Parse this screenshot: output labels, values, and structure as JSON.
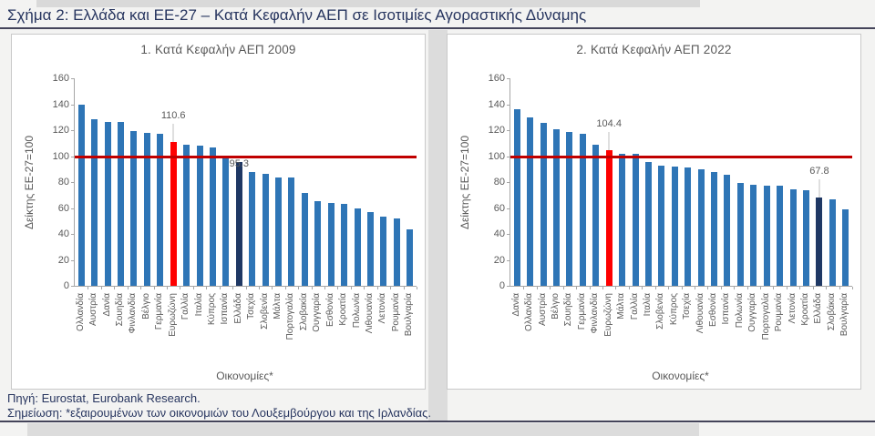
{
  "page": {
    "title": "Σχήμα 2: Ελλάδα και ΕΕ-27 – Κατά Κεφαλήν ΑΕΠ σε Ισοτιμίες Αγοραστικής Δύναμης",
    "footer": {
      "source": "Πηγή: Eurostat, Eurobank Research.",
      "note": "Σημείωση: *εξαιρουμένων των οικονομιών του Λουξεμβούργου και της Ιρλανδίας."
    }
  },
  "colors": {
    "bar_blue": "#2e75b6",
    "bar_red": "#fe0000",
    "bar_navy": "#1f3864",
    "reference_line_red": "#c00000",
    "title_navy": "#27355f",
    "axis_gray": "#595959"
  },
  "chart_data": [
    {
      "type": "bar",
      "title": "1. Κατά Κεφαλήν ΑΕΠ 2009",
      "xlabel": "Οικονομίες*",
      "ylabel": "Δείκτης ΕΕ-27=100",
      "ylim": [
        0,
        160
      ],
      "ytick_step": 20,
      "grid": false,
      "reference_line_y": 100,
      "categories": [
        "Ολλανδία",
        "Αυστρία",
        "Δανία",
        "Σουηδία",
        "Φινλανδία",
        "Βέλγιο",
        "Γερμανία",
        "Ευρωζώνη",
        "Γαλλία",
        "Ιταλία",
        "Κύπρος",
        "Ισπανία",
        "Ελλάδα",
        "Τσεχία",
        "Σλοβενία",
        "Μάλτα",
        "Πορτογαλία",
        "Σλοβακία",
        "Ουγγαρία",
        "Εσθονία",
        "Κροατία",
        "Πολωνία",
        "Λιθουανία",
        "Λετονία",
        "Ρουμανία",
        "Βουλγαρία"
      ],
      "values": [
        140,
        128.5,
        126.5,
        126,
        119,
        118,
        117,
        110.6,
        109,
        108,
        106.5,
        100.5,
        95.3,
        87.5,
        86,
        83.5,
        83.5,
        71.5,
        65,
        64,
        63.5,
        60,
        57,
        53.5,
        52,
        43.5
      ],
      "highlight_red_category": "Ευρωζώνη",
      "highlight_navy_category": "Ελλάδα",
      "annotations": [
        {
          "category": "Ευρωζώνη",
          "text": "110.6",
          "placement": "above-leader"
        },
        {
          "category": "Ελλάδα",
          "text": "95.3",
          "placement": "at-top"
        }
      ]
    },
    {
      "type": "bar",
      "title": "2. Κατά Κεφαλήν ΑΕΠ 2022",
      "xlabel": "Οικονομίες*",
      "ylabel": "Δείκτης ΕΕ-27=100",
      "ylim": [
        0,
        160
      ],
      "ytick_step": 20,
      "grid": false,
      "reference_line_y": 100,
      "categories": [
        "Δανία",
        "Ολλανδία",
        "Αυστρία",
        "Βέλγιο",
        "Σουηδία",
        "Γερμανία",
        "Φινλανδία",
        "Ευρωζώνη",
        "Μάλτα",
        "Γαλλία",
        "Ιταλία",
        "Σλοβενία",
        "Κύπρος",
        "Τσεχία",
        "Λιθουανία",
        "Εσθονία",
        "Ισπανία",
        "Πολωνία",
        "Ουγγαρία",
        "Πορτογαλία",
        "Ρουμανία",
        "Λετονία",
        "Κροατία",
        "Ελλάδα",
        "Σλοβάκια",
        "Βουλγαρία"
      ],
      "values": [
        136,
        129.5,
        125.5,
        121,
        118.5,
        117,
        109,
        104.4,
        101.5,
        101.5,
        95.5,
        92.5,
        92,
        91.5,
        90,
        87.5,
        85.5,
        79.5,
        78,
        77,
        77,
        74.5,
        73.5,
        67.8,
        67,
        59
      ],
      "highlight_red_category": "Ευρωζώνη",
      "highlight_navy_category": "Ελλάδα",
      "annotations": [
        {
          "category": "Ευρωζώνη",
          "text": "104.4",
          "placement": "above-leader"
        },
        {
          "category": "Ελλάδα",
          "text": "67.8",
          "placement": "above-leader"
        }
      ]
    }
  ]
}
